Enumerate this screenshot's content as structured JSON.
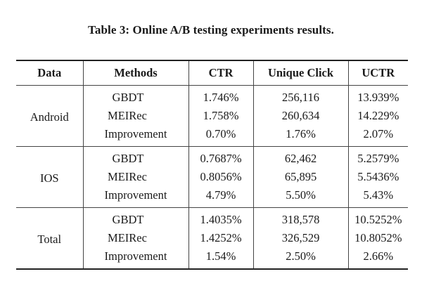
{
  "caption": "Table 3: Online A/B testing experiments results.",
  "table": {
    "headers": [
      "Data",
      "Methods",
      "CTR",
      "Unique Click",
      "UCTR"
    ],
    "groups": [
      {
        "data": "Android",
        "rows": [
          {
            "method": "GBDT",
            "ctr": "1.746%",
            "unique_click": "256,116",
            "uctr": "13.939%"
          },
          {
            "method": "MEIRec",
            "ctr": "1.758%",
            "unique_click": "260,634",
            "uctr": "14.229%"
          },
          {
            "method": "Improvement",
            "ctr": "0.70%",
            "unique_click": "1.76%",
            "uctr": "2.07%"
          }
        ]
      },
      {
        "data": "IOS",
        "rows": [
          {
            "method": "GBDT",
            "ctr": "0.7687%",
            "unique_click": "62,462",
            "uctr": "5.2579%"
          },
          {
            "method": "MEIRec",
            "ctr": "0.8056%",
            "unique_click": "65,895",
            "uctr": "5.5436%"
          },
          {
            "method": "Improvement",
            "ctr": "4.79%",
            "unique_click": "5.50%",
            "uctr": "5.43%"
          }
        ]
      },
      {
        "data": "Total",
        "rows": [
          {
            "method": "GBDT",
            "ctr": "1.4035%",
            "unique_click": "318,578",
            "uctr": "10.5252%"
          },
          {
            "method": "MEIRec",
            "ctr": "1.4252%",
            "unique_click": "326,529",
            "uctr": "10.8052%"
          },
          {
            "method": "Improvement",
            "ctr": "1.54%",
            "unique_click": "2.50%",
            "uctr": "2.66%"
          }
        ]
      }
    ]
  }
}
